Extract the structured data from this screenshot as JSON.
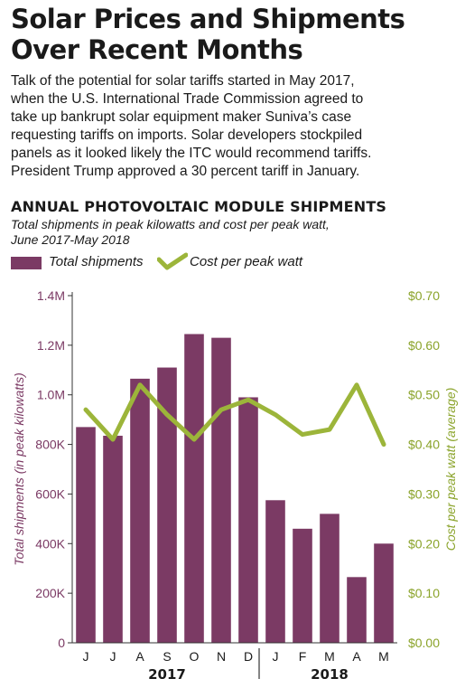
{
  "header": {
    "title_line1": "Solar Prices and Shipments",
    "title_line2": "Over Recent Months",
    "intro_lines": [
      "Talk of the potential for solar tariffs started in May 2017,",
      "when the U.S. International Trade Commission agreed to",
      "take up bankrupt solar equipment maker Suniva’s case",
      "requesting tariffs on imports. Solar developers stockpiled",
      "panels as it looked likely the ITC would recommend tariffs.",
      "President Trump approved a 30 percent tariff in January."
    ]
  },
  "chart_data": {
    "type": "bar",
    "title": "ANNUAL PHOTOVOLTAIC MODULE SHIPMENTS",
    "subtitle_lines": [
      "Total shipments in peak kilowatts and cost per peak watt,",
      "June 2017-May 2018"
    ],
    "categories": [
      "J",
      "J",
      "A",
      "S",
      "O",
      "N",
      "D",
      "J",
      "F",
      "M",
      "A",
      "M"
    ],
    "year_groups": [
      {
        "label": "2017",
        "start": 0,
        "end": 6
      },
      {
        "label": "2018",
        "start": 7,
        "end": 11
      }
    ],
    "series": [
      {
        "name": "Total shipments",
        "type": "bar",
        "axis": "left",
        "values": [
          870000,
          835000,
          1065000,
          1110000,
          1245000,
          1230000,
          990000,
          575000,
          460000,
          520000,
          265000,
          400000
        ]
      },
      {
        "name": "Cost per peak watt",
        "type": "line",
        "axis": "right",
        "values": [
          0.47,
          0.41,
          0.52,
          0.46,
          0.41,
          0.47,
          0.49,
          0.46,
          0.42,
          0.43,
          0.52,
          0.4
        ]
      }
    ],
    "ylabel_left": "Total shipments (in peak  kilowatts)",
    "ylabel_right": "Cost per peak watt (average)",
    "ylim_left": [
      0,
      1400000
    ],
    "ylim_right": [
      0,
      0.7
    ],
    "yticks_left": [
      "0",
      "200K",
      "400K",
      "600K",
      "800K",
      "1.0M",
      "1.2M",
      "1.4M"
    ],
    "yticks_right": [
      "$0.00",
      "$0.10",
      "$0.20",
      "$0.30",
      "$0.40",
      "$0.50",
      "$0.60",
      "$0.70"
    ],
    "grid": false,
    "legend_position": "top-left",
    "colors": {
      "bar": "#7b3a64",
      "line": "#9cb53a",
      "left_axis_text": "#7b3a64",
      "right_axis_text": "#8aa32a"
    }
  }
}
